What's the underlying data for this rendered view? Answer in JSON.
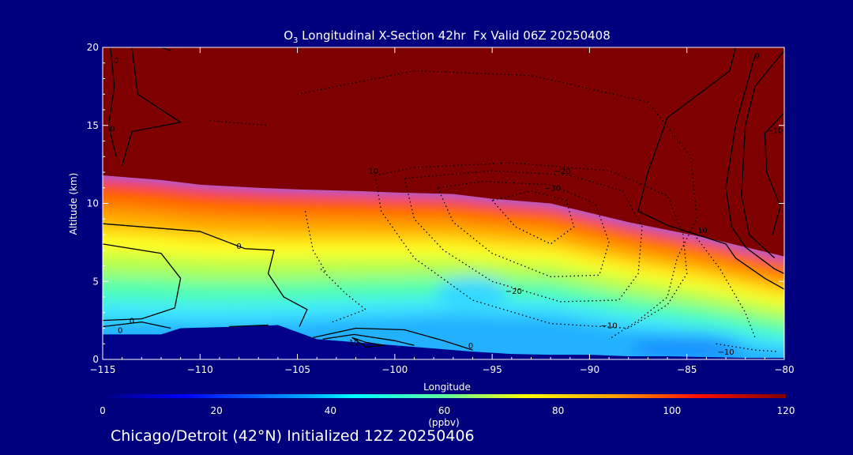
{
  "chart_data": {
    "type": "heatmap",
    "title_prefix": "O",
    "title_sub": "3",
    "title_rest": " Longitudinal X-Section 42hr  Fx Valid 06Z 20250408",
    "xlabel": "Longitude",
    "ylabel": "Altitude (km)",
    "xlim": [
      -115,
      -80
    ],
    "ylim": [
      0,
      20
    ],
    "xticks": [
      -115,
      -110,
      -105,
      -100,
      -95,
      -90,
      -85,
      -80
    ],
    "xtick_labels": [
      "−115",
      "−110",
      "−105",
      "−100",
      "−95",
      "−90",
      "−85",
      "−80"
    ],
    "yticks": [
      0,
      5,
      10,
      15,
      20
    ],
    "ytick_labels": [
      "0",
      "5",
      "10",
      "15",
      "20"
    ],
    "colorbar": {
      "min": 0,
      "max": 120,
      "ticks": [
        0,
        20,
        40,
        60,
        80,
        100,
        120
      ],
      "tick_labels": [
        "0",
        "20",
        "40",
        "60",
        "80",
        "100",
        "120"
      ],
      "label": "(ppbv)"
    },
    "tropopause_km": [
      [
        -115,
        11.8
      ],
      [
        -112,
        11.5
      ],
      [
        -110,
        11.2
      ],
      [
        -107,
        11.0
      ],
      [
        -105,
        10.9
      ],
      [
        -102,
        10.8
      ],
      [
        -100,
        10.7
      ],
      [
        -97,
        10.6
      ],
      [
        -95,
        10.3
      ],
      [
        -92,
        10.0
      ],
      [
        -90,
        9.4
      ],
      [
        -88,
        8.8
      ],
      [
        -86,
        8.3
      ],
      [
        -84,
        7.8
      ],
      [
        -82,
        7.2
      ],
      [
        -80,
        6.6
      ]
    ],
    "ground_km": [
      [
        -115,
        1.6
      ],
      [
        -112,
        1.6
      ],
      [
        -111,
        2.0
      ],
      [
        -108,
        2.1
      ],
      [
        -106,
        2.2
      ],
      [
        -104,
        1.3
      ],
      [
        -102,
        1.1
      ],
      [
        -100,
        0.9
      ],
      [
        -98,
        0.7
      ],
      [
        -96,
        0.5
      ],
      [
        -94,
        0.35
      ],
      [
        -92,
        0.3
      ],
      [
        -90,
        0.3
      ],
      [
        -88,
        0.2
      ],
      [
        -86,
        0.2
      ],
      [
        -84,
        0.15
      ],
      [
        -82,
        0.1
      ],
      [
        -80,
        0.1
      ]
    ],
    "contour_labels": [
      {
        "text": "0",
        "x": -114.3,
        "y": 19.0
      },
      {
        "text": "0",
        "x": -81.4,
        "y": 19.3
      },
      {
        "text": "0",
        "x": -114.5,
        "y": 14.6
      },
      {
        "text": "−10",
        "x": -80.5,
        "y": 14.5
      },
      {
        "text": "10",
        "x": -101.1,
        "y": 11.9
      },
      {
        "text": "−20",
        "x": -91.4,
        "y": 11.9
      },
      {
        "text": "−30",
        "x": -91.9,
        "y": 10.8
      },
      {
        "text": "10",
        "x": -84.2,
        "y": 8.1
      },
      {
        "text": "−20",
        "x": -93.9,
        "y": 4.2
      },
      {
        "text": "−10",
        "x": -89.0,
        "y": 2.0
      },
      {
        "text": "−10",
        "x": -83.0,
        "y": 0.3
      },
      {
        "text": "0",
        "x": -113.5,
        "y": 2.3
      },
      {
        "text": "0",
        "x": -114.1,
        "y": 1.7
      },
      {
        "text": "10",
        "x": -102.1,
        "y": 0.9
      },
      {
        "text": "0",
        "x": -96.1,
        "y": 0.7
      },
      {
        "text": "0",
        "x": -108.0,
        "y": 7.1
      }
    ]
  },
  "footer": "Chicago/Detroit (42°N) Initialized 12Z 20250406",
  "colors": {
    "background": "#00007f",
    "stratosphere": "#7f0000",
    "ground": "#00008b",
    "axes": "#ffffff"
  }
}
